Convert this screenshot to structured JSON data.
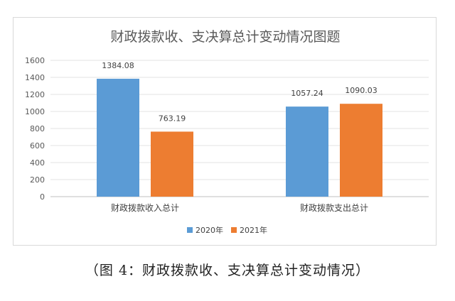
{
  "chart_data": {
    "type": "bar",
    "title": "财政拨款收、支决算总计变动情况图题",
    "categories": [
      "财政拨款收入总计",
      "财政拨款支出总计"
    ],
    "series": [
      {
        "name": "2020年",
        "color": "#5b9bd5",
        "values": [
          1384.08,
          1057.24
        ]
      },
      {
        "name": "2021年",
        "color": "#ed7d31",
        "values": [
          763.19,
          1090.03
        ]
      }
    ],
    "value_labels": [
      [
        "1384.08",
        "1057.24"
      ],
      [
        "763.19",
        "1090.03"
      ]
    ],
    "ylim": [
      0,
      1600
    ],
    "yticks": [
      0,
      200,
      400,
      600,
      800,
      1000,
      1200,
      1400,
      1600
    ],
    "grid": true,
    "legend_position": "bottom"
  },
  "caption": "（图 4：财政拨款收、支决算总计变动情况）"
}
